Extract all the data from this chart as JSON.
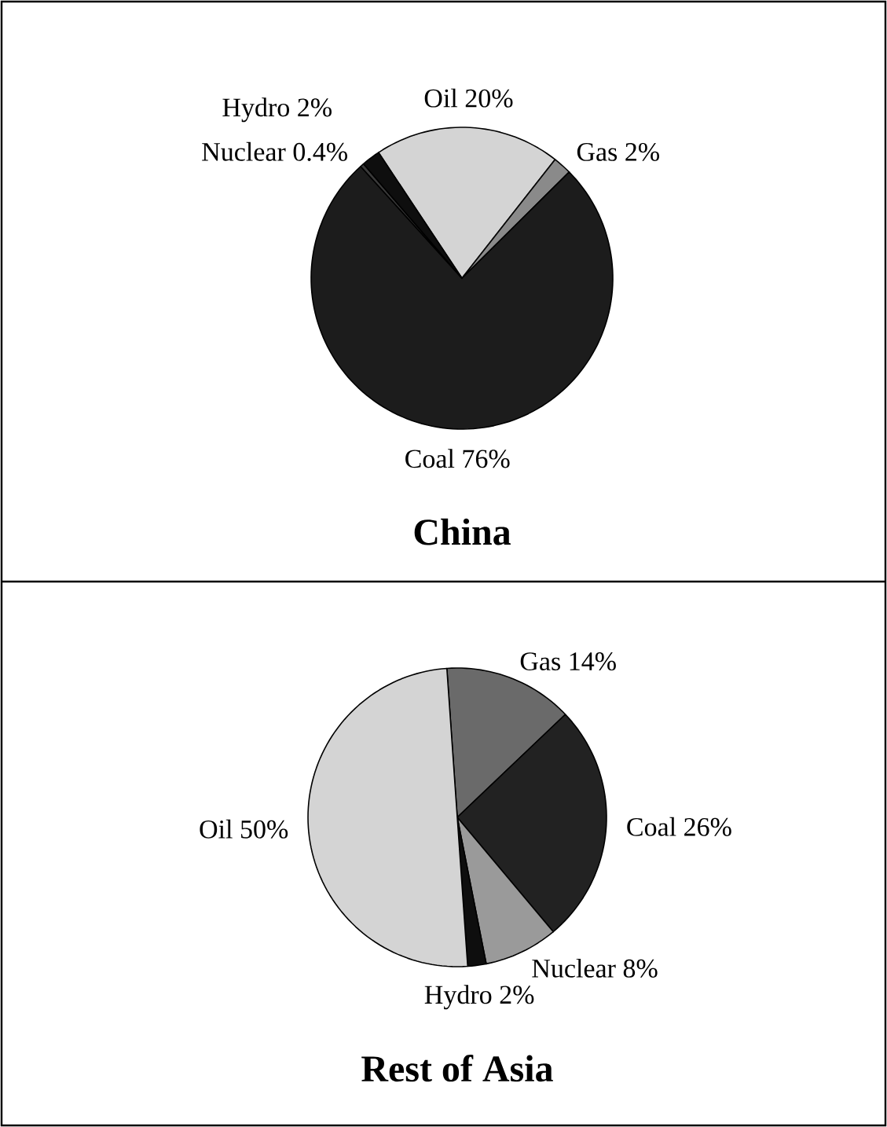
{
  "chart_data": [
    {
      "type": "pie",
      "title": "China",
      "categories": [
        "Oil",
        "Gas",
        "Coal",
        "Nuclear",
        "Hydro"
      ],
      "values": [
        20,
        2,
        76,
        0.4,
        2
      ],
      "value_labels": [
        "20%",
        "2%",
        "76%",
        "0.4%",
        "2%"
      ],
      "colors": [
        "#d4d4d4",
        "#8a8a8a",
        "#1c1c1c",
        "#3a3a3a",
        "#0e0e0e"
      ]
    },
    {
      "type": "pie",
      "title": "Rest of Asia",
      "categories": [
        "Gas",
        "Coal",
        "Nuclear",
        "Hydro",
        "Oil"
      ],
      "values": [
        14,
        26,
        8,
        2,
        50
      ],
      "value_labels": [
        "14%",
        "26%",
        "8%",
        "2%",
        "50%"
      ],
      "colors": [
        "#6a6a6a",
        "#222222",
        "#9a9a9a",
        "#0e0e0e",
        "#d4d4d4"
      ]
    }
  ]
}
